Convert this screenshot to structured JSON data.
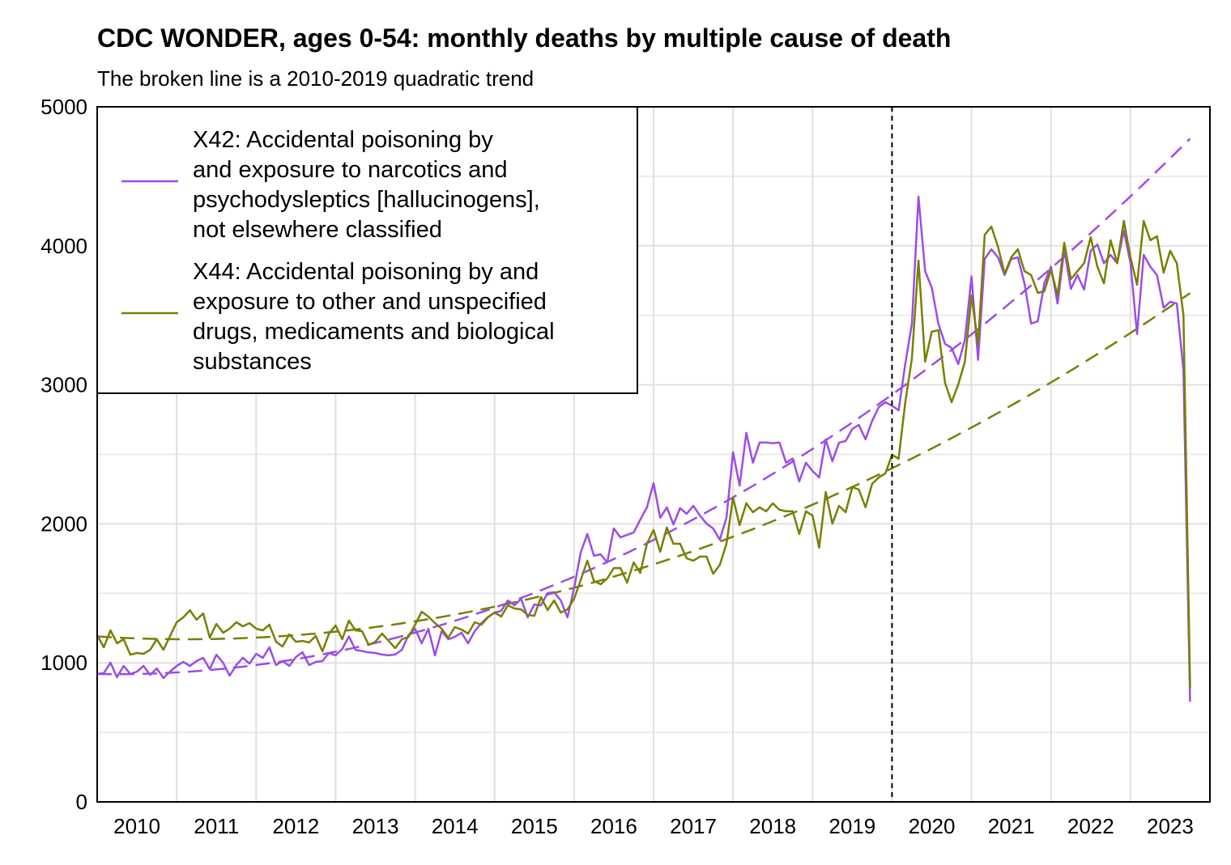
{
  "chart_data": {
    "type": "line",
    "title": "CDC WONDER, ages 0-54: monthly deaths by multiple cause of death",
    "subtitle": "The broken line is a 2010-2019 quadratic trend",
    "xlabel": "",
    "ylabel": "",
    "xlim": [
      2010,
      2024
    ],
    "ylim": [
      0,
      5000
    ],
    "yticks": [
      0,
      1000,
      2000,
      3000,
      4000,
      5000
    ],
    "xtick_labels": [
      "2010",
      "2011",
      "2012",
      "2013",
      "2014",
      "2015",
      "2016",
      "2017",
      "2018",
      "2019",
      "2020",
      "2021",
      "2022",
      "2023"
    ],
    "grid": true,
    "legend_position": "top-left",
    "vline_x": 2020,
    "x_start": "2010-01",
    "x_step": "month",
    "series": [
      {
        "name": "X42: Accidental poisoning by and exposure to narcotics and psychodysleptics [hallucinogens], not elsewhere classified",
        "legend_lines": [
          "X42: Accidental poisoning by",
          "and exposure to narcotics and",
          "psychodysleptics [hallucinogens],",
          "not elsewhere classified"
        ],
        "color": "#9d4ce8",
        "trend": {
          "t0": 2010,
          "c": 920,
          "b": -9.9,
          "a": 21.09
        },
        "values": [
          920,
          926,
          1001,
          897,
          978,
          920,
          937,
          978,
          914,
          960,
          891,
          937,
          978,
          1007,
          978,
          1013,
          1036,
          955,
          1059,
          1001,
          908,
          984,
          1036,
          995,
          1065,
          1036,
          1112,
          984,
          1013,
          978,
          1042,
          1077,
          984,
          1007,
          1013,
          1071,
          1054,
          1100,
          1190,
          1094,
          1085,
          1075,
          1071,
          1060,
          1054,
          1060,
          1094,
          1200,
          1245,
          1141,
          1245,
          1054,
          1228,
          1170,
          1187,
          1217,
          1141,
          1228,
          1286,
          1330,
          1362,
          1374,
          1449,
          1414,
          1461,
          1327,
          1420,
          1414,
          1502,
          1508,
          1449,
          1327,
          1537,
          1793,
          1927,
          1770,
          1781,
          1723,
          1967,
          1903,
          1920,
          1938,
          2030,
          2119,
          2293,
          2043,
          2119,
          1996,
          2113,
          2072,
          2130,
          2060,
          2002,
          1967,
          1886,
          2043,
          2515,
          2275,
          2655,
          2440,
          2585,
          2585,
          2580,
          2585,
          2440,
          2470,
          2305,
          2440,
          2380,
          2334,
          2608,
          2450,
          2584,
          2596,
          2683,
          2712,
          2608,
          2741,
          2840,
          2875,
          2850,
          2817,
          3150,
          3440,
          4354,
          3818,
          3700,
          3440,
          3295,
          3265,
          3150,
          3324,
          3780,
          3180,
          3905,
          3975,
          3917,
          3790,
          3905,
          3917,
          3730,
          3440,
          3457,
          3730,
          3850,
          3585,
          3975,
          3690,
          3790,
          3685,
          3965,
          4010,
          3875,
          3935,
          3875,
          4110,
          3875,
          3365,
          3935,
          3850,
          3790,
          3555,
          3597,
          3585,
          3100,
          720
        ]
      },
      {
        "name": "X44: Accidental poisoning by and exposure to other and unspecified drugs, medicaments and biological substances",
        "legend_lines": [
          "X44: Accidental poisoning by and",
          "exposure to other and unspecified",
          "drugs, medicaments and biological",
          "substances"
        ],
        "color": "#7a7f00",
        "trend": {
          "t0": 2010,
          "c": 1190,
          "b": -35.4,
          "a": 15.64
        },
        "values": [
          1199,
          1112,
          1234,
          1141,
          1170,
          1059,
          1071,
          1065,
          1094,
          1170,
          1094,
          1193,
          1292,
          1327,
          1379,
          1310,
          1356,
          1182,
          1280,
          1217,
          1246,
          1292,
          1263,
          1286,
          1246,
          1234,
          1275,
          1152,
          1118,
          1205,
          1152,
          1158,
          1147,
          1193,
          1083,
          1211,
          1269,
          1170,
          1304,
          1234,
          1228,
          1129,
          1152,
          1211,
          1158,
          1106,
          1170,
          1187,
          1275,
          1368,
          1333,
          1286,
          1246,
          1181,
          1257,
          1240,
          1211,
          1292,
          1275,
          1327,
          1362,
          1333,
          1414,
          1391,
          1385,
          1345,
          1339,
          1473,
          1380,
          1449,
          1362,
          1385,
          1461,
          1595,
          1735,
          1589,
          1566,
          1607,
          1682,
          1682,
          1577,
          1723,
          1647,
          1857,
          1956,
          1799,
          1973,
          1857,
          1857,
          1752,
          1735,
          1764,
          1764,
          1641,
          1705,
          1857,
          2189,
          1991,
          2148,
          2084,
          2119,
          2090,
          2148,
          2101,
          2090,
          2090,
          1927,
          2090,
          2060,
          1828,
          2229,
          2002,
          2130,
          2084,
          2264,
          2247,
          2119,
          2288,
          2334,
          2363,
          2497,
          2468,
          2875,
          3190,
          3894,
          3166,
          3382,
          3394,
          3015,
          2875,
          3003,
          3166,
          3644,
          3294,
          4080,
          4138,
          3993,
          3800,
          3917,
          3975,
          3818,
          3790,
          3661,
          3673,
          3830,
          3644,
          4022,
          3760,
          3818,
          3875,
          4062,
          3850,
          3730,
          4040,
          3875,
          4179,
          3917,
          3720,
          4179,
          4040,
          4069,
          3807,
          3964,
          3875,
          3500,
          820
        ]
      }
    ]
  }
}
